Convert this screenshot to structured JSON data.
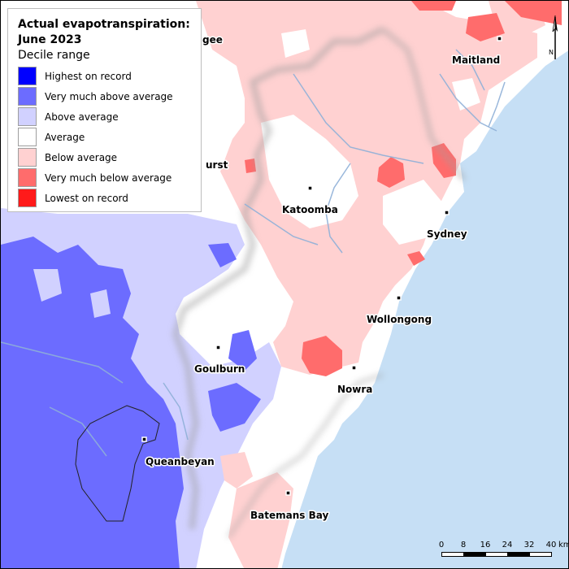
{
  "legend": {
    "title": "Actual evapotranspiration: June 2023",
    "subtitle": "Decile range",
    "items": [
      {
        "label": "Highest on record",
        "color": "#0000ff"
      },
      {
        "label": "Very much above average",
        "color": "#6c6cff"
      },
      {
        "label": "Above average",
        "color": "#d1d1ff"
      },
      {
        "label": "Average",
        "color": "#ffffff"
      },
      {
        "label": "Below average",
        "color": "#ffd1d1"
      },
      {
        "label": "Very much below average",
        "color": "#ff6c6c"
      },
      {
        "label": "Lowest on record",
        "color": "#ff1a1a"
      }
    ]
  },
  "colors": {
    "ocean": "#c6dff5",
    "rivers": "#8fb0d8"
  },
  "towns": [
    {
      "name": "Maitland"
    },
    {
      "name": "Katoomba"
    },
    {
      "name": "Sydney"
    },
    {
      "name": "Wollongong"
    },
    {
      "name": "Goulburn"
    },
    {
      "name": "Nowra"
    },
    {
      "name": "Queanbeyan"
    },
    {
      "name": "Batemans Bay"
    }
  ],
  "partial_labels": {
    "top_left": "gee",
    "left": "urst"
  },
  "scalebar": {
    "ticks": [
      "0",
      "8",
      "16",
      "24",
      "32",
      "40"
    ],
    "unit": "km"
  },
  "north_arrow": {
    "label": "N"
  }
}
